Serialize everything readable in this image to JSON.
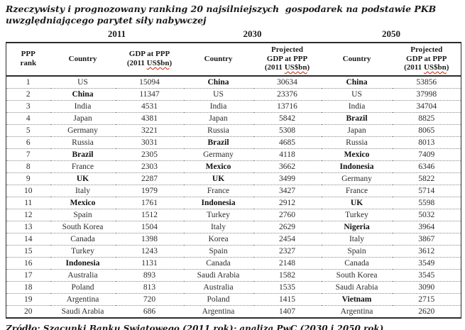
{
  "title_line1": "Rzeczywisty i prognozowany ranking 20 najsilniejszych  gospodarek na podstawie PKB",
  "title_line2": "uwzględniającego parytet siły nabywczej",
  "display": {
    "header_rank_line1": "PPP",
    "header_rank_line2": "rank",
    "header_country": "Country",
    "header_projected": "Projected",
    "header_gdp": "GDP at PPP",
    "unit_pre": "(2011 ",
    "unit_wavy": "US$bn",
    "unit_post": ")"
  },
  "source": {
    "pre": "Zródło: Szacunki Banku Swiatowego (2011 rok); analiza ",
    "wavy": "PwC",
    "post": " (2030 i 2050 rok)"
  },
  "colors": {
    "text": "#222222",
    "rule_line": "#2b2b2b",
    "dotted_line": "#8a8a8a",
    "spellcheck_red": "#cc2200",
    "background": "#ffffff"
  },
  "chart_data": {
    "type": "table",
    "title": "Rzeczywisty i prognozowany ranking 20 najsilniejszych gospodarek na podstawie PKB uwzględniającego parytet siły nabywczej",
    "source": "Zródło: Szacunki Banku Swiatowego (2011 rok); analiza PwC (2030 i 2050 rok)",
    "year_groups": [
      "2011",
      "2030",
      "2050"
    ],
    "columns": [
      "PPP rank",
      "Country",
      "GDP at PPP (2011 US$bn)",
      "Country",
      "Projected GDP at PPP (2011 US$bn)",
      "Country",
      "Projected GDP at PPP (2011 US$bn)"
    ],
    "rows": [
      {
        "rank": 1,
        "y2011": {
          "country": "US",
          "bold": false,
          "gdp": 15094
        },
        "y2030": {
          "country": "China",
          "bold": true,
          "gdp": 30634
        },
        "y2050": {
          "country": "China",
          "bold": true,
          "gdp": 53856
        }
      },
      {
        "rank": 2,
        "y2011": {
          "country": "China",
          "bold": true,
          "gdp": 11347
        },
        "y2030": {
          "country": "US",
          "bold": false,
          "gdp": 23376
        },
        "y2050": {
          "country": "US",
          "bold": false,
          "gdp": 37998
        }
      },
      {
        "rank": 3,
        "y2011": {
          "country": "India",
          "bold": false,
          "gdp": 4531
        },
        "y2030": {
          "country": "India",
          "bold": false,
          "gdp": 13716
        },
        "y2050": {
          "country": "India",
          "bold": false,
          "gdp": 34704
        }
      },
      {
        "rank": 4,
        "y2011": {
          "country": "Japan",
          "bold": false,
          "gdp": 4381
        },
        "y2030": {
          "country": "Japan",
          "bold": false,
          "gdp": 5842
        },
        "y2050": {
          "country": "Brazil",
          "bold": true,
          "gdp": 8825
        }
      },
      {
        "rank": 5,
        "y2011": {
          "country": "Germany",
          "bold": false,
          "gdp": 3221
        },
        "y2030": {
          "country": "Russia",
          "bold": false,
          "gdp": 5308
        },
        "y2050": {
          "country": "Japan",
          "bold": false,
          "gdp": 8065
        }
      },
      {
        "rank": 6,
        "y2011": {
          "country": "Russia",
          "bold": false,
          "gdp": 3031
        },
        "y2030": {
          "country": "Brazil",
          "bold": true,
          "gdp": 4685
        },
        "y2050": {
          "country": "Russia",
          "bold": false,
          "gdp": 8013
        }
      },
      {
        "rank": 7,
        "y2011": {
          "country": "Brazil",
          "bold": true,
          "gdp": 2305
        },
        "y2030": {
          "country": "Germany",
          "bold": false,
          "gdp": 4118
        },
        "y2050": {
          "country": "Mexico",
          "bold": true,
          "gdp": 7409
        }
      },
      {
        "rank": 8,
        "y2011": {
          "country": "France",
          "bold": false,
          "gdp": 2303
        },
        "y2030": {
          "country": "Mexico",
          "bold": true,
          "gdp": 3662
        },
        "y2050": {
          "country": "Indonesia",
          "bold": true,
          "gdp": 6346
        }
      },
      {
        "rank": 9,
        "y2011": {
          "country": "UK",
          "bold": true,
          "gdp": 2287
        },
        "y2030": {
          "country": "UK",
          "bold": true,
          "gdp": 3499
        },
        "y2050": {
          "country": "Germany",
          "bold": false,
          "gdp": 5822
        }
      },
      {
        "rank": 10,
        "y2011": {
          "country": "Italy",
          "bold": false,
          "gdp": 1979
        },
        "y2030": {
          "country": "France",
          "bold": false,
          "gdp": 3427
        },
        "y2050": {
          "country": "France",
          "bold": false,
          "gdp": 5714
        }
      },
      {
        "rank": 11,
        "y2011": {
          "country": "Mexico",
          "bold": true,
          "gdp": 1761
        },
        "y2030": {
          "country": "Indonesia",
          "bold": true,
          "gdp": 2912
        },
        "y2050": {
          "country": "UK",
          "bold": true,
          "gdp": 5598
        }
      },
      {
        "rank": 12,
        "y2011": {
          "country": "Spain",
          "bold": false,
          "gdp": 1512
        },
        "y2030": {
          "country": "Turkey",
          "bold": false,
          "gdp": 2760
        },
        "y2050": {
          "country": "Turkey",
          "bold": false,
          "gdp": 5032
        }
      },
      {
        "rank": 13,
        "y2011": {
          "country": "South Korea",
          "bold": false,
          "gdp": 1504
        },
        "y2030": {
          "country": "Italy",
          "bold": false,
          "gdp": 2629
        },
        "y2050": {
          "country": "Nigeria",
          "bold": true,
          "gdp": 3964
        }
      },
      {
        "rank": 14,
        "y2011": {
          "country": "Canada",
          "bold": false,
          "gdp": 1398
        },
        "y2030": {
          "country": "Korea",
          "bold": false,
          "gdp": 2454
        },
        "y2050": {
          "country": "Italy",
          "bold": false,
          "gdp": 3867
        }
      },
      {
        "rank": 15,
        "y2011": {
          "country": "Turkey",
          "bold": false,
          "gdp": 1243
        },
        "y2030": {
          "country": "Spain",
          "bold": false,
          "gdp": 2327
        },
        "y2050": {
          "country": "Spain",
          "bold": false,
          "gdp": 3612
        }
      },
      {
        "rank": 16,
        "y2011": {
          "country": "Indonesia",
          "bold": true,
          "gdp": 1131
        },
        "y2030": {
          "country": "Canada",
          "bold": false,
          "gdp": 2148
        },
        "y2050": {
          "country": "Canada",
          "bold": false,
          "gdp": 3549
        }
      },
      {
        "rank": 17,
        "y2011": {
          "country": "Australia",
          "bold": false,
          "gdp": 893
        },
        "y2030": {
          "country": "Saudi Arabia",
          "bold": false,
          "gdp": 1582
        },
        "y2050": {
          "country": "South Korea",
          "bold": false,
          "gdp": 3545
        }
      },
      {
        "rank": 18,
        "y2011": {
          "country": "Poland",
          "bold": false,
          "gdp": 813
        },
        "y2030": {
          "country": "Australia",
          "bold": false,
          "gdp": 1535
        },
        "y2050": {
          "country": "Saudi Arabia",
          "bold": false,
          "gdp": 3090
        }
      },
      {
        "rank": 19,
        "y2011": {
          "country": "Argentina",
          "bold": false,
          "gdp": 720
        },
        "y2030": {
          "country": "Poland",
          "bold": false,
          "gdp": 1415
        },
        "y2050": {
          "country": "Vietnam",
          "bold": true,
          "gdp": 2715
        }
      },
      {
        "rank": 20,
        "y2011": {
          "country": "Saudi Arabia",
          "bold": false,
          "gdp": 686
        },
        "y2030": {
          "country": "Argentina",
          "bold": false,
          "gdp": 1407
        },
        "y2050": {
          "country": "Argentina",
          "bold": false,
          "gdp": 2620
        }
      }
    ]
  }
}
